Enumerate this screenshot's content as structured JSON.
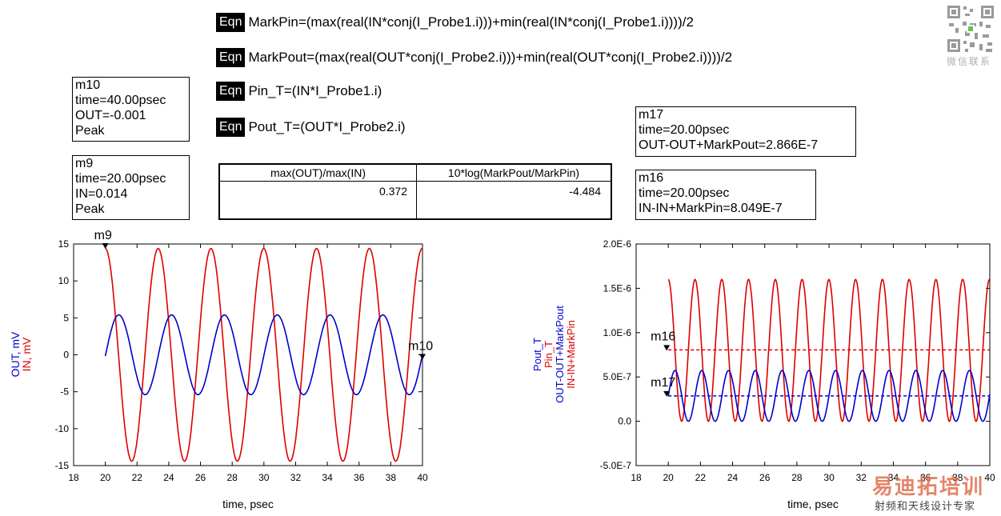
{
  "equations": [
    {
      "tag": "Eqn",
      "text": "MarkPin=(max(real(IN*conj(I_Probe1.i)))+min(real(IN*conj(I_Probe1.i))))/2"
    },
    {
      "tag": "Eqn",
      "text": "MarkPout=(max(real(OUT*conj(I_Probe2.i)))+min(real(OUT*conj(I_Probe2.i))))/2"
    },
    {
      "tag": "Eqn",
      "text": "Pin_T=(IN*I_Probe1.i)"
    },
    {
      "tag": "Eqn",
      "text": "Pout_T=(OUT*I_Probe2.i)"
    }
  ],
  "markers": {
    "m10": {
      "name": "m10",
      "line1": "time=40.00psec",
      "line2": "OUT=-0.001",
      "line3": "Peak"
    },
    "m9": {
      "name": "m9",
      "line1": "time=20.00psec",
      "line2": "IN=0.014",
      "line3": "Peak"
    },
    "m17": {
      "name": "m17",
      "line1": "time=20.00psec",
      "line2": "OUT-OUT+MarkPout=2.866E-7"
    },
    "m16": {
      "name": "m16",
      "line1": "time=20.00psec",
      "line2": "IN-IN+MarkPin=8.049E-7"
    }
  },
  "table": {
    "col1_header": "max(OUT)/max(IN)",
    "col2_header": "10*log(MarkPout/MarkPin)",
    "col1_value": "0.372",
    "col2_value": "-4.484"
  },
  "watermark": {
    "top": "微信联系",
    "brand": "易迪拓培训",
    "sub": "射频和天线设计专家"
  },
  "chart_data": [
    {
      "type": "line",
      "xlabel": "time, psec",
      "ylabel_series": [
        "OUT, mV",
        "IN, mV"
      ],
      "xlim": [
        18,
        40
      ],
      "ylim": [
        -15,
        15
      ],
      "x_ticks": [
        "18",
        "20",
        "22",
        "24",
        "26",
        "28",
        "30",
        "32",
        "34",
        "36",
        "38",
        "40"
      ],
      "y_ticks": [
        "15",
        "10",
        "5",
        "0",
        "-5",
        "-10",
        "-15"
      ],
      "series": [
        {
          "name": "IN, mV",
          "color": "#dd0000",
          "x_start": 20,
          "x_end": 40,
          "amplitude": 14.4,
          "period": 3.33,
          "phase_start": "peak"
        },
        {
          "name": "OUT, mV",
          "color": "#0000cc",
          "x_start": 20,
          "x_end": 40,
          "amplitude": 5.4,
          "period": 3.33,
          "offset_start": -0.8,
          "phase_shift_psec": 0.85
        }
      ],
      "markers": [
        {
          "label": "m9",
          "x": 20,
          "y": 14.4
        },
        {
          "label": "m10",
          "x": 40,
          "y": -0.001
        }
      ]
    },
    {
      "type": "line",
      "xlabel": "time, psec",
      "ylabel_series": [
        "Pout_T",
        "Pin_T",
        "OUT-OUT+MarkPout",
        "IN-IN+MarkPin"
      ],
      "xlim": [
        18,
        40
      ],
      "ylim": [
        -5e-07,
        2e-06
      ],
      "x_ticks": [
        "18",
        "20",
        "22",
        "24",
        "26",
        "28",
        "30",
        "32",
        "34",
        "36",
        "38",
        "40"
      ],
      "y_ticks": [
        "2.0E-6",
        "1.5E-6",
        "1.0E-6",
        "5.0E-7",
        "0.0",
        "-5.0E-7"
      ],
      "series": [
        {
          "name": "Pin_T",
          "color": "#dd0000",
          "x_start": 20,
          "x_end": 40,
          "max": 1.6e-06,
          "min": 0,
          "period": 1.665
        },
        {
          "name": "Pout_T",
          "color": "#0000cc",
          "x_start": 20,
          "x_end": 40,
          "max": 5.73e-07,
          "min": 0,
          "period": 1.665
        },
        {
          "name": "IN-IN+MarkPin",
          "color": "#dd0000",
          "dashed": true,
          "value": 8.049e-07
        },
        {
          "name": "OUT-OUT+MarkPout",
          "color": "#0000cc",
          "dashed": true,
          "value": 2.866e-07
        }
      ],
      "markers": [
        {
          "label": "m16",
          "x": 20,
          "y": 8.049e-07
        },
        {
          "label": "m17",
          "x": 20,
          "y": 2.866e-07
        }
      ]
    }
  ]
}
